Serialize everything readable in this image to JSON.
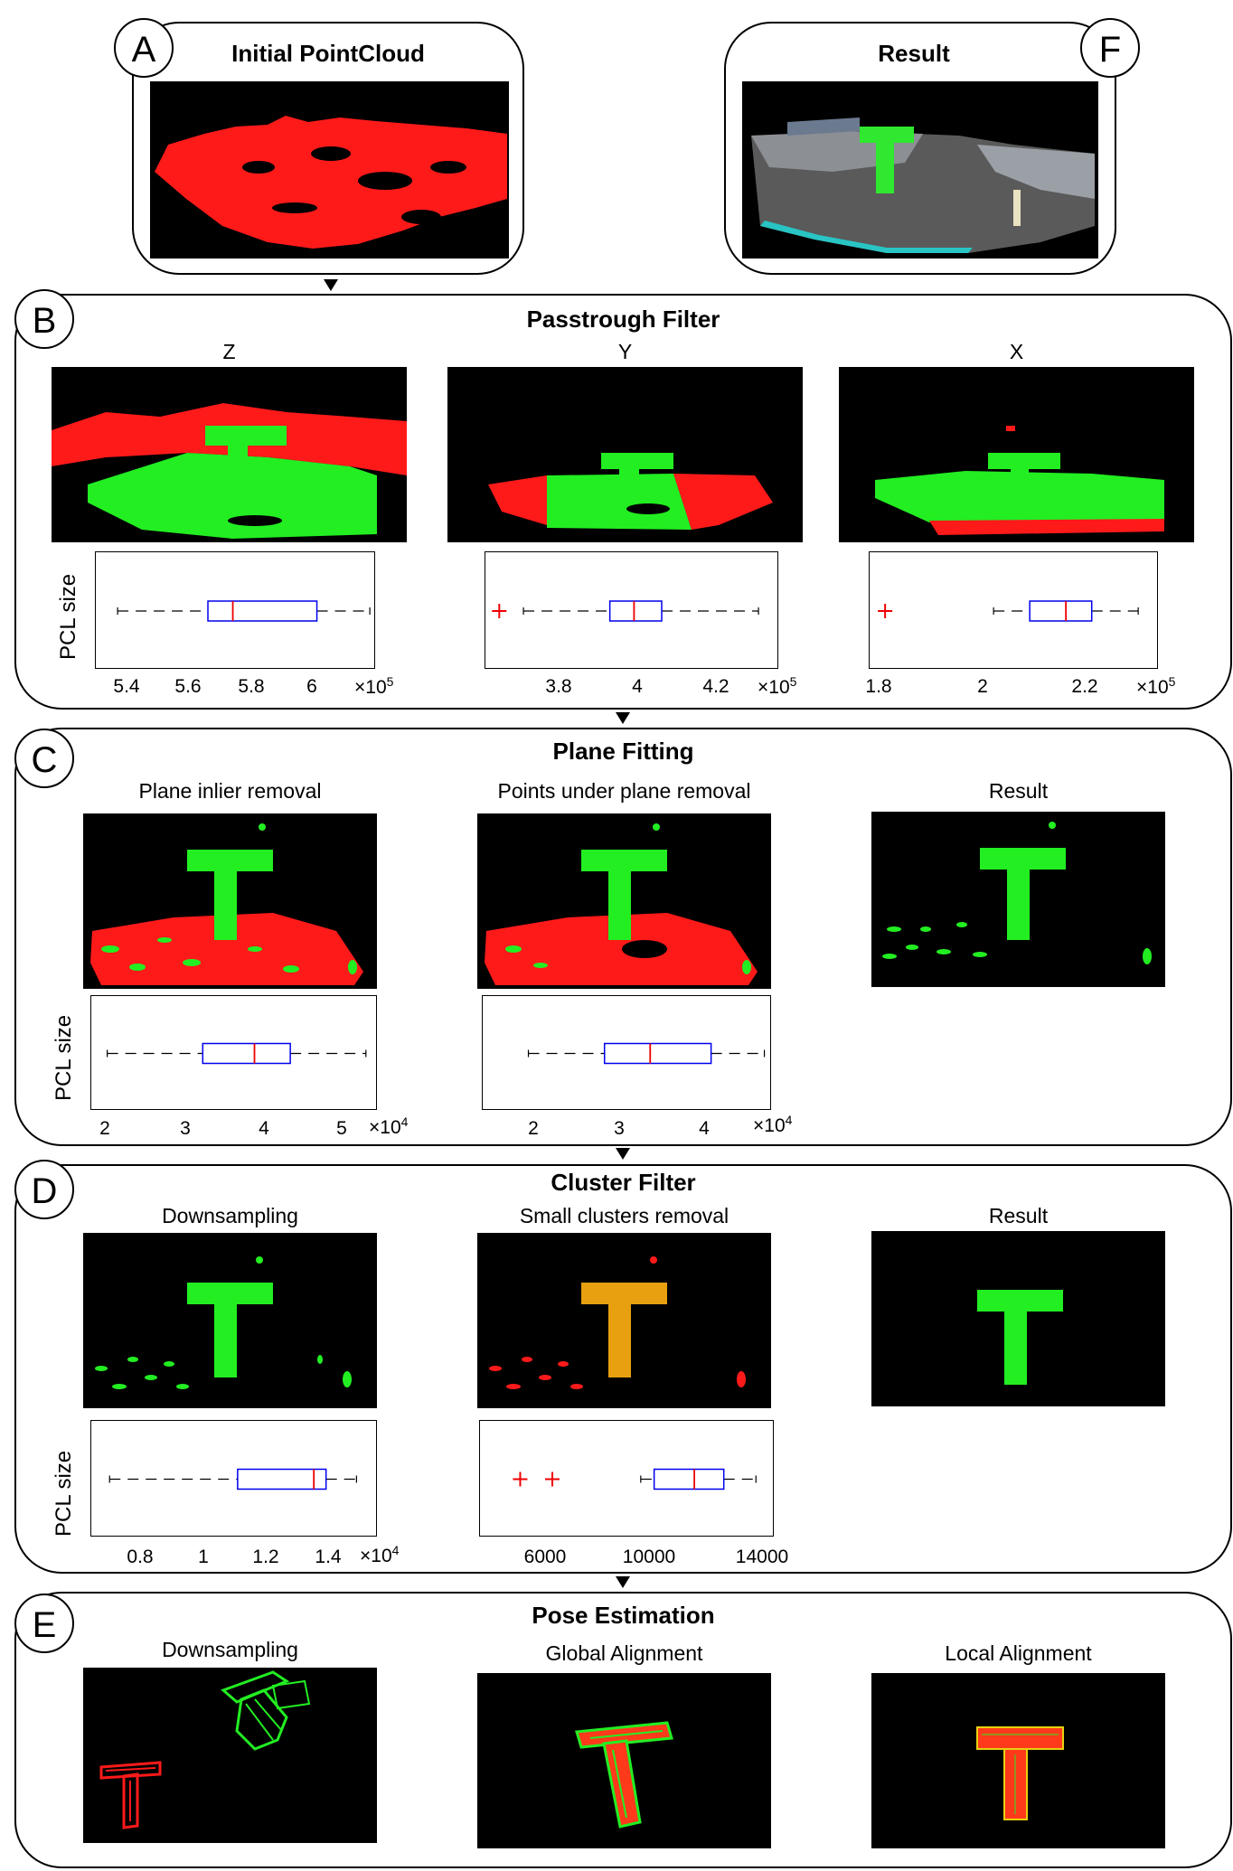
{
  "panels": {
    "a": {
      "letter": "A",
      "title": "Initial PointCloud"
    },
    "f": {
      "letter": "F",
      "title": "Result"
    },
    "b": {
      "letter": "B",
      "title": "Passtrough Filter",
      "cols": [
        "Z",
        "Y",
        "X"
      ],
      "ylabel": "PCL size",
      "plots": [
        {
          "ticks": [
            "5.4",
            "5.6",
            "5.8",
            "6"
          ],
          "multiplier": "×10",
          "exp": "5"
        },
        {
          "ticks": [
            "3.8",
            "4",
            "4.2"
          ],
          "multiplier": "×10",
          "exp": "5"
        },
        {
          "ticks": [
            "1.8",
            "2",
            "2.2"
          ],
          "multiplier": "×10",
          "exp": "5"
        }
      ]
    },
    "c": {
      "letter": "C",
      "title": "Plane Fitting",
      "cols": [
        "Plane inlier removal",
        "Points under plane removal",
        "Result"
      ],
      "ylabel": "PCL size",
      "plots": [
        {
          "ticks": [
            "2",
            "3",
            "4",
            "5"
          ],
          "multiplier": "×10",
          "exp": "4"
        },
        {
          "ticks": [
            "2",
            "3",
            "4"
          ],
          "multiplier": "×10",
          "exp": "4"
        }
      ]
    },
    "d": {
      "letter": "D",
      "title": "Cluster Filter",
      "cols": [
        "Downsampling",
        "Small clusters removal",
        "Result"
      ],
      "ylabel": "PCL size",
      "plots": [
        {
          "ticks": [
            "0.8",
            "1",
            "1.2",
            "1.4"
          ],
          "multiplier": "×10",
          "exp": "4"
        },
        {
          "ticks": [
            "6000",
            "10000",
            "14000"
          ],
          "multiplier": "",
          "exp": ""
        }
      ]
    },
    "e": {
      "letter": "E",
      "title": "Pose Estimation",
      "cols": [
        "Downsampling",
        "Global Alignment",
        "Local Alignment"
      ]
    }
  },
  "boxplots": [
    {
      "id": "b-z",
      "xlim": [
        5.25,
        6.15
      ],
      "whisker_low": 5.32,
      "q1": 5.61,
      "median": 5.69,
      "q3": 5.96,
      "whisker_high": 6.13,
      "outliers": []
    },
    {
      "id": "b-y",
      "xlim": [
        3.6,
        4.45
      ],
      "whisker_low": 3.71,
      "q1": 3.96,
      "median": 4.03,
      "q3": 4.11,
      "whisker_high": 4.39,
      "outliers": [
        3.64
      ]
    },
    {
      "id": "b-x",
      "xlim": [
        1.77,
        2.33
      ],
      "whisker_low": 2.01,
      "q1": 2.08,
      "median": 2.15,
      "q3": 2.2,
      "whisker_high": 2.29,
      "outliers": [
        1.8
      ]
    },
    {
      "id": "c-1",
      "xlim": [
        1.8,
        5.4
      ],
      "whisker_low": 2.0,
      "q1": 3.2,
      "median": 3.85,
      "q3": 4.3,
      "whisker_high": 5.25,
      "outliers": []
    },
    {
      "id": "c-2",
      "xlim": [
        1.0,
        4.8
      ],
      "whisker_low": 1.6,
      "q1": 2.6,
      "median": 3.2,
      "q3": 4.0,
      "whisker_high": 4.7,
      "outliers": []
    },
    {
      "id": "d-1",
      "xlim": [
        0.62,
        1.56
      ],
      "whisker_low": 0.68,
      "q1": 1.1,
      "median": 1.35,
      "q3": 1.39,
      "whisker_high": 1.49,
      "outliers": []
    },
    {
      "id": "d-2",
      "xlim": [
        3500,
        14500
      ],
      "whisker_low": 9500,
      "q1": 10000,
      "median": 11500,
      "q3": 12600,
      "whisker_high": 13800,
      "outliers": [
        5000,
        6200
      ]
    }
  ],
  "colors": {
    "box": "#0000ee",
    "median": "#ee0000",
    "outlier": "#ee0000",
    "cloud_red": "#ff1a1a",
    "cloud_green": "#22ee22"
  }
}
